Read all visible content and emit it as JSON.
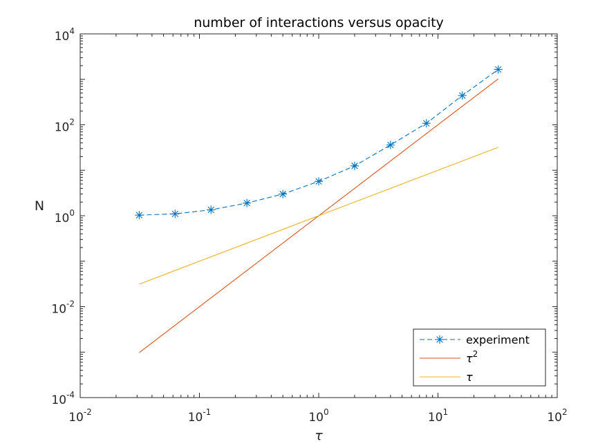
{
  "chart_data": {
    "type": "line",
    "title": "number of interactions versus opacity",
    "xlabel": "τ",
    "ylabel": "N",
    "xscale": "log",
    "yscale": "log",
    "xlim": [
      0.01,
      100
    ],
    "ylim": [
      0.0001,
      10000
    ],
    "grid": false,
    "legend_position": "bottom-right",
    "x_ticks": [
      {
        "base": "10",
        "exp": "-2"
      },
      {
        "base": "10",
        "exp": "-1"
      },
      {
        "base": "10",
        "exp": "0"
      },
      {
        "base": "10",
        "exp": "1"
      },
      {
        "base": "10",
        "exp": "2"
      }
    ],
    "y_ticks": [
      {
        "base": "10",
        "exp": "-4"
      },
      {
        "base": "10",
        "exp": "-2"
      },
      {
        "base": "10",
        "exp": "0"
      },
      {
        "base": "10",
        "exp": "2"
      },
      {
        "base": "10",
        "exp": "4"
      }
    ],
    "series": [
      {
        "name": "experiment",
        "style": "dashed-star",
        "color": "#0072BD",
        "x": [
          0.03125,
          0.0625,
          0.125,
          0.25,
          0.5,
          1,
          2,
          4,
          8,
          16,
          32
        ],
        "y": [
          1.03,
          1.1,
          1.35,
          1.9,
          3.0,
          5.7,
          12.5,
          36,
          108,
          440,
          1650
        ]
      },
      {
        "name": "τ",
        "legend_exp": "2",
        "style": "solid",
        "color": "#D95319",
        "x": [
          0.03125,
          32
        ],
        "y": [
          0.0009765625,
          1024
        ]
      },
      {
        "name": "τ",
        "legend_exp": "",
        "style": "solid",
        "color": "#EDB120",
        "x": [
          0.03125,
          32
        ],
        "y": [
          0.03125,
          32
        ]
      }
    ],
    "legend": [
      {
        "label": "experiment",
        "sup": ""
      },
      {
        "label": "τ",
        "sup": "2"
      },
      {
        "label": "τ",
        "sup": ""
      }
    ]
  }
}
